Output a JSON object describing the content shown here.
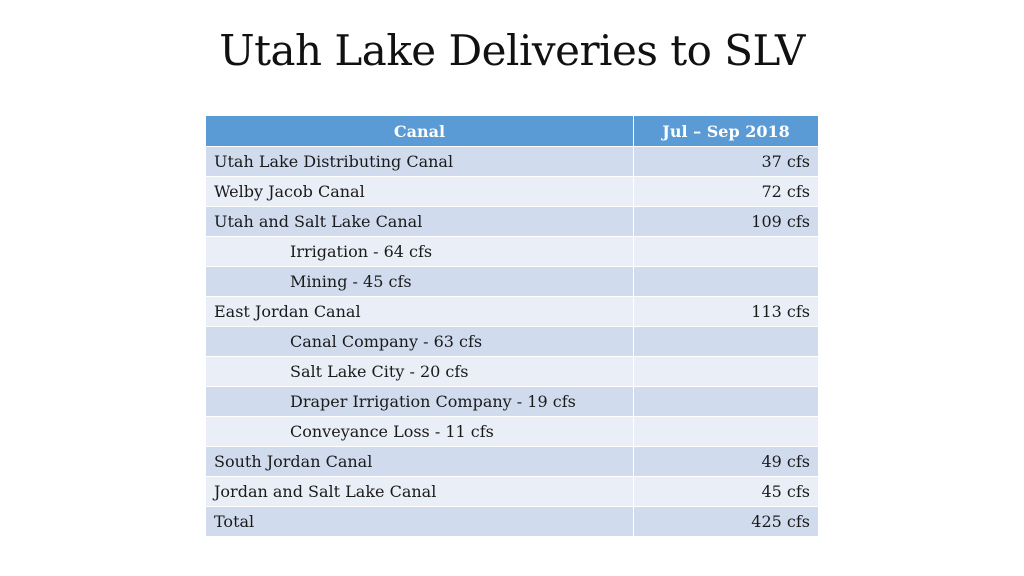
{
  "title": "Utah Lake Deliveries to SLV",
  "table": {
    "headers": {
      "canal": "Canal",
      "period": "Jul – Sep 2018"
    },
    "rows": [
      {
        "label": "Utah Lake Distributing Canal",
        "value": "37 cfs",
        "indent": false
      },
      {
        "label": "Welby Jacob Canal",
        "value": "72 cfs",
        "indent": false
      },
      {
        "label": "Utah and Salt Lake Canal",
        "value": "109 cfs",
        "indent": false
      },
      {
        "label": "Irrigation - 64 cfs",
        "value": "",
        "indent": true
      },
      {
        "label": "Mining - 45 cfs",
        "value": "",
        "indent": true
      },
      {
        "label": "East Jordan Canal",
        "value": "113 cfs",
        "indent": false
      },
      {
        "label": "Canal Company - 63 cfs",
        "value": "",
        "indent": true
      },
      {
        "label": "Salt Lake City - 20 cfs",
        "value": "",
        "indent": true
      },
      {
        "label": "Draper Irrigation Company - 19 cfs",
        "value": "",
        "indent": true
      },
      {
        "label": "Conveyance Loss - 11 cfs",
        "value": "",
        "indent": true
      },
      {
        "label": "South Jordan Canal",
        "value": "49 cfs",
        "indent": false
      },
      {
        "label": "Jordan and Salt Lake Canal",
        "value": "45 cfs",
        "indent": false
      },
      {
        "label": "Total",
        "value": "425 cfs",
        "indent": false
      }
    ]
  },
  "colors": {
    "header_bg": "#5b9bd5",
    "row_odd_bg": "#d0dcee",
    "row_even_bg": "#e9eef7"
  }
}
